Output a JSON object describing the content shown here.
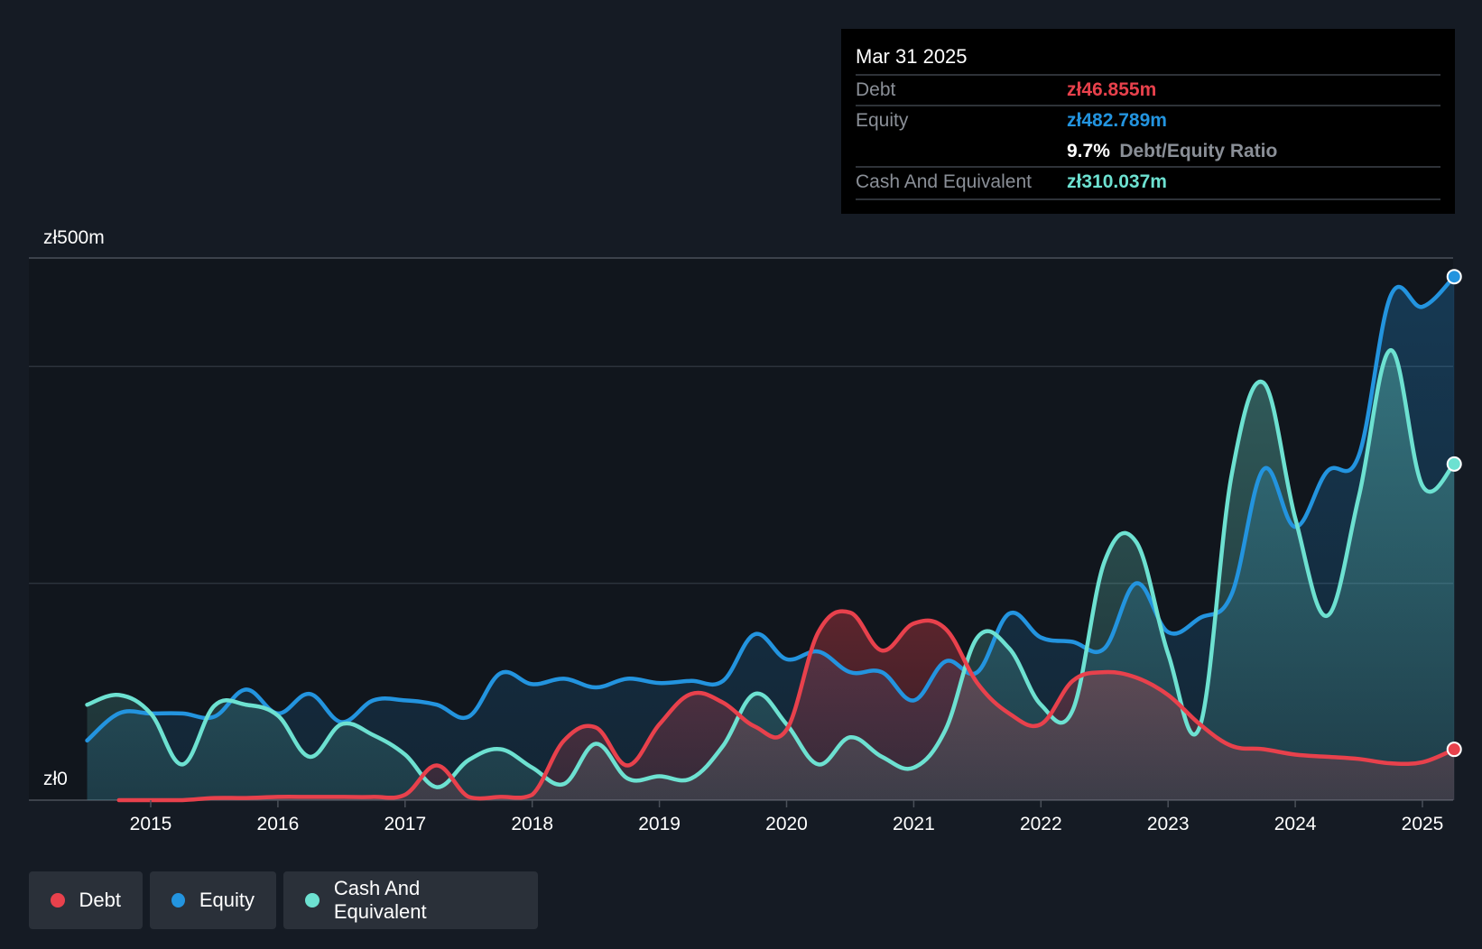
{
  "chart_data": {
    "type": "area",
    "currency_prefix": "zł",
    "y_labels": {
      "top": "zł500m",
      "bottom": "zł0"
    },
    "ylim": [
      0,
      500
    ],
    "x_ticks": [
      "2015",
      "2016",
      "2017",
      "2018",
      "2019",
      "2020",
      "2021",
      "2022",
      "2023",
      "2024",
      "2025"
    ],
    "grid": true,
    "colors": {
      "debt": "#e8414c",
      "equity": "#2394df",
      "cash": "#6de1d1"
    },
    "series": [
      {
        "name": "Debt",
        "key": "debt",
        "points": [
          [
            2014.75,
            0
          ],
          [
            2015.0,
            0
          ],
          [
            2015.25,
            0
          ],
          [
            2015.5,
            2
          ],
          [
            2015.75,
            2
          ],
          [
            2016.0,
            3
          ],
          [
            2016.25,
            3
          ],
          [
            2016.5,
            3
          ],
          [
            2016.75,
            3
          ],
          [
            2017.0,
            5
          ],
          [
            2017.25,
            32
          ],
          [
            2017.5,
            3
          ],
          [
            2017.75,
            3
          ],
          [
            2018.0,
            5
          ],
          [
            2018.25,
            55
          ],
          [
            2018.5,
            67
          ],
          [
            2018.75,
            32
          ],
          [
            2019.0,
            70
          ],
          [
            2019.25,
            98
          ],
          [
            2019.5,
            90
          ],
          [
            2019.75,
            68
          ],
          [
            2020.0,
            65
          ],
          [
            2020.25,
            155
          ],
          [
            2020.5,
            173
          ],
          [
            2020.75,
            138
          ],
          [
            2021.0,
            163
          ],
          [
            2021.25,
            158
          ],
          [
            2021.5,
            108
          ],
          [
            2021.75,
            80
          ],
          [
            2022.0,
            70
          ],
          [
            2022.25,
            110
          ],
          [
            2022.5,
            118
          ],
          [
            2022.75,
            113
          ],
          [
            2023.0,
            97
          ],
          [
            2023.25,
            70
          ],
          [
            2023.5,
            50
          ],
          [
            2023.75,
            47
          ],
          [
            2024.0,
            42
          ],
          [
            2024.25,
            40
          ],
          [
            2024.5,
            38
          ],
          [
            2024.75,
            34
          ],
          [
            2025.0,
            35
          ],
          [
            2025.25,
            46.855
          ]
        ]
      },
      {
        "name": "Equity",
        "key": "equity",
        "points": [
          [
            2014.5,
            55
          ],
          [
            2014.75,
            80
          ],
          [
            2015.0,
            80
          ],
          [
            2015.25,
            80
          ],
          [
            2015.5,
            77
          ],
          [
            2015.75,
            102
          ],
          [
            2016.0,
            80
          ],
          [
            2016.25,
            98
          ],
          [
            2016.5,
            72
          ],
          [
            2016.75,
            92
          ],
          [
            2017.0,
            92
          ],
          [
            2017.25,
            88
          ],
          [
            2017.5,
            77
          ],
          [
            2017.75,
            117
          ],
          [
            2018.0,
            107
          ],
          [
            2018.25,
            112
          ],
          [
            2018.5,
            104
          ],
          [
            2018.75,
            112
          ],
          [
            2019.0,
            108
          ],
          [
            2019.25,
            110
          ],
          [
            2019.5,
            110
          ],
          [
            2019.75,
            153
          ],
          [
            2020.0,
            130
          ],
          [
            2020.25,
            137
          ],
          [
            2020.5,
            118
          ],
          [
            2020.75,
            118
          ],
          [
            2021.0,
            92
          ],
          [
            2021.25,
            128
          ],
          [
            2021.5,
            118
          ],
          [
            2021.75,
            172
          ],
          [
            2022.0,
            150
          ],
          [
            2022.25,
            146
          ],
          [
            2022.5,
            140
          ],
          [
            2022.75,
            200
          ],
          [
            2023.0,
            155
          ],
          [
            2023.25,
            168
          ],
          [
            2023.5,
            190
          ],
          [
            2023.75,
            305
          ],
          [
            2024.0,
            252
          ],
          [
            2024.25,
            303
          ],
          [
            2024.5,
            318
          ],
          [
            2024.75,
            465
          ],
          [
            2025.0,
            455
          ],
          [
            2025.25,
            482.789
          ]
        ]
      },
      {
        "name": "Cash And Equivalent",
        "key": "cash",
        "points": [
          [
            2014.5,
            88
          ],
          [
            2014.75,
            97
          ],
          [
            2015.0,
            80
          ],
          [
            2015.25,
            33
          ],
          [
            2015.5,
            87
          ],
          [
            2015.75,
            88
          ],
          [
            2016.0,
            78
          ],
          [
            2016.25,
            40
          ],
          [
            2016.5,
            70
          ],
          [
            2016.75,
            60
          ],
          [
            2017.0,
            42
          ],
          [
            2017.25,
            12
          ],
          [
            2017.5,
            37
          ],
          [
            2017.75,
            47
          ],
          [
            2018.0,
            30
          ],
          [
            2018.25,
            15
          ],
          [
            2018.5,
            52
          ],
          [
            2018.75,
            20
          ],
          [
            2019.0,
            22
          ],
          [
            2019.25,
            20
          ],
          [
            2019.5,
            50
          ],
          [
            2019.75,
            98
          ],
          [
            2020.0,
            70
          ],
          [
            2020.25,
            33
          ],
          [
            2020.5,
            58
          ],
          [
            2020.75,
            40
          ],
          [
            2021.0,
            30
          ],
          [
            2021.25,
            65
          ],
          [
            2021.5,
            150
          ],
          [
            2021.75,
            140
          ],
          [
            2022.0,
            88
          ],
          [
            2022.25,
            83
          ],
          [
            2022.5,
            220
          ],
          [
            2022.75,
            238
          ],
          [
            2023.0,
            135
          ],
          [
            2023.25,
            68
          ],
          [
            2023.5,
            300
          ],
          [
            2023.75,
            385
          ],
          [
            2024.0,
            260
          ],
          [
            2024.25,
            170
          ],
          [
            2024.5,
            280
          ],
          [
            2024.75,
            415
          ],
          [
            2025.0,
            290
          ],
          [
            2025.25,
            310.037
          ]
        ]
      }
    ]
  },
  "tooltip": {
    "date": "Mar 31 2025",
    "debt_label": "Debt",
    "debt_value": "zł46.855m",
    "equity_label": "Equity",
    "equity_value": "zł482.789m",
    "ratio_value": "9.7%",
    "ratio_label": "Debt/Equity Ratio",
    "cash_label": "Cash And Equivalent",
    "cash_value": "zł310.037m"
  },
  "legend": [
    {
      "key": "debt",
      "label": "Debt"
    },
    {
      "key": "equity",
      "label": "Equity"
    },
    {
      "key": "cash",
      "label": "Cash And Equivalent"
    }
  ]
}
